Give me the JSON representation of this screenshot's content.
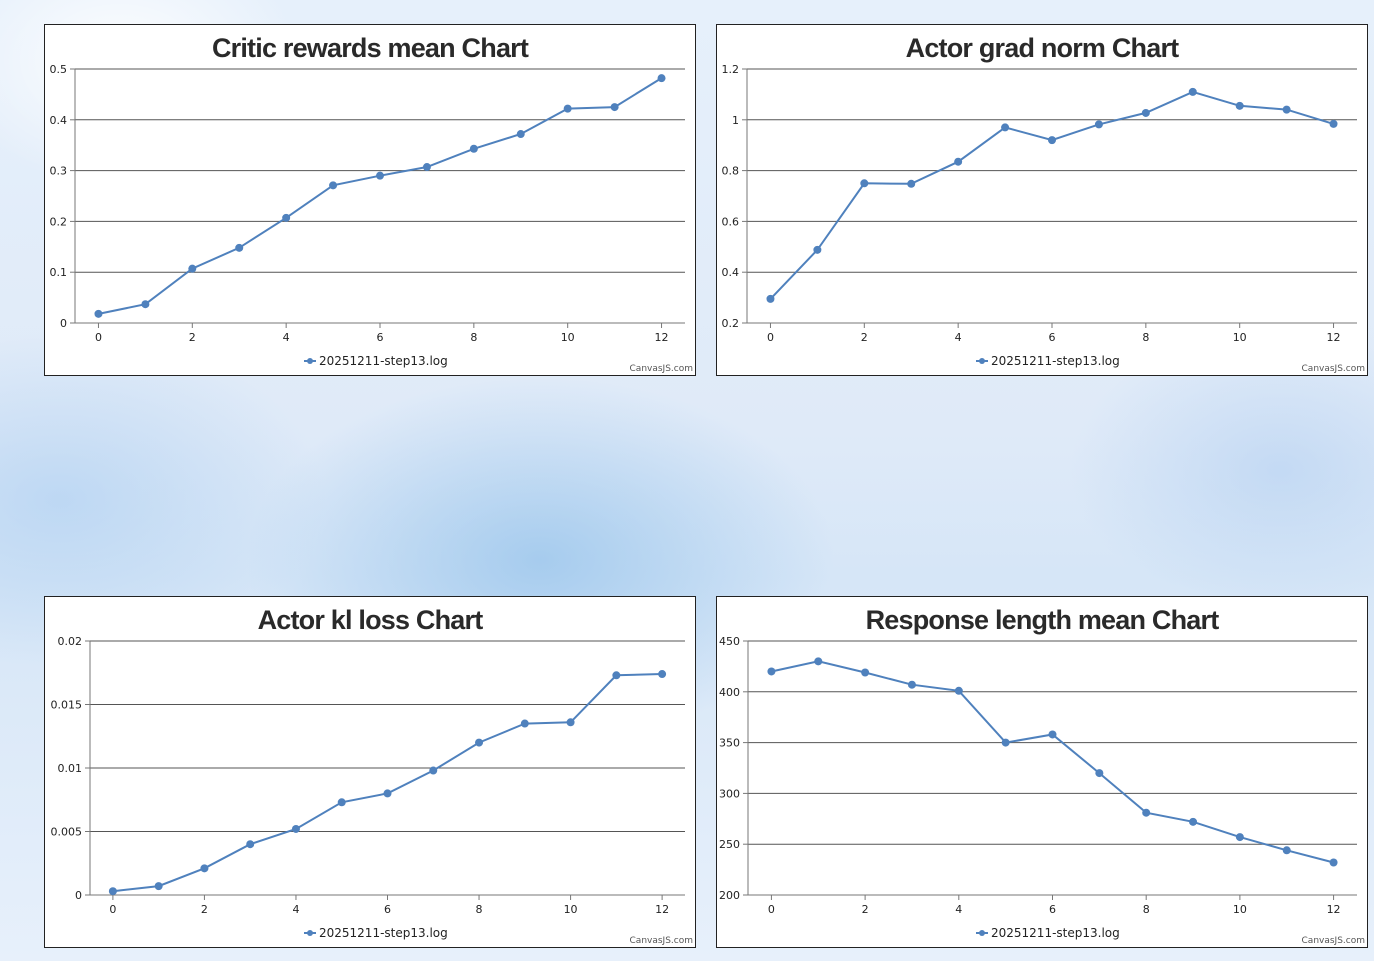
{
  "credit": "CanvasJS.com",
  "series_color": "#4f81bd",
  "chart_data": [
    {
      "type": "line",
      "title": "Critic rewards mean Chart",
      "legend": "20251211-step13.log",
      "x": [
        0,
        1,
        2,
        3,
        4,
        5,
        6,
        7,
        8,
        9,
        10,
        11,
        12
      ],
      "y": [
        0.018,
        0.037,
        0.107,
        0.148,
        0.207,
        0.271,
        0.29,
        0.307,
        0.343,
        0.372,
        0.422,
        0.425,
        0.482
      ],
      "ylim": [
        0,
        0.5
      ],
      "yticks": [
        0,
        0.1,
        0.2,
        0.3,
        0.4,
        0.5
      ],
      "ytick_labels": [
        "0",
        "0.1",
        "0.2",
        "0.3",
        "0.4",
        "0.5"
      ],
      "xlim": [
        -0.5,
        12.5
      ],
      "xticks": [
        0,
        2,
        4,
        6,
        8,
        10,
        12
      ],
      "xtick_labels": [
        "0",
        "2",
        "4",
        "6",
        "8",
        "10",
        "12"
      ],
      "grid": true,
      "legend_position": "bottom-center"
    },
    {
      "type": "line",
      "title": "Actor grad norm Chart",
      "legend": "20251211-step13.log",
      "x": [
        0,
        1,
        2,
        3,
        4,
        5,
        6,
        7,
        8,
        9,
        10,
        11,
        12
      ],
      "y": [
        0.295,
        0.488,
        0.75,
        0.748,
        0.835,
        0.97,
        0.92,
        0.982,
        1.027,
        1.11,
        1.055,
        1.04,
        0.984
      ],
      "ylim": [
        0.2,
        1.2
      ],
      "yticks": [
        0.2,
        0.4,
        0.6,
        0.8,
        1,
        1.2
      ],
      "ytick_labels": [
        "0.2",
        "0.4",
        "0.6",
        "0.8",
        "1",
        "1.2"
      ],
      "xlim": [
        -0.5,
        12.5
      ],
      "xticks": [
        0,
        2,
        4,
        6,
        8,
        10,
        12
      ],
      "xtick_labels": [
        "0",
        "2",
        "4",
        "6",
        "8",
        "10",
        "12"
      ],
      "grid": true,
      "legend_position": "bottom-center"
    },
    {
      "type": "line",
      "title": "Actor kl loss Chart",
      "legend": "20251211-step13.log",
      "x": [
        0,
        1,
        2,
        3,
        4,
        5,
        6,
        7,
        8,
        9,
        10,
        11,
        12
      ],
      "y": [
        0.0003,
        0.0007,
        0.0021,
        0.004,
        0.0052,
        0.0073,
        0.008,
        0.0098,
        0.012,
        0.0135,
        0.0136,
        0.0173,
        0.0174
      ],
      "ylim": [
        0,
        0.02
      ],
      "yticks": [
        0,
        0.005,
        0.01,
        0.015,
        0.02
      ],
      "ytick_labels": [
        "0",
        "0.005",
        "0.01",
        "0.015",
        "0.02"
      ],
      "xlim": [
        -0.5,
        12.5
      ],
      "xticks": [
        0,
        2,
        4,
        6,
        8,
        10,
        12
      ],
      "xtick_labels": [
        "0",
        "2",
        "4",
        "6",
        "8",
        "10",
        "12"
      ],
      "grid": true,
      "legend_position": "bottom-center"
    },
    {
      "type": "line",
      "title": "Response length mean Chart",
      "legend": "20251211-step13.log",
      "x": [
        0,
        1,
        2,
        3,
        4,
        5,
        6,
        7,
        8,
        9,
        10,
        11,
        12
      ],
      "y": [
        420,
        430,
        419,
        407,
        401,
        350,
        358,
        320,
        281,
        272,
        257,
        244,
        232
      ],
      "ylim": [
        200,
        450
      ],
      "yticks": [
        200,
        250,
        300,
        350,
        400,
        450
      ],
      "ytick_labels": [
        "200",
        "250",
        "300",
        "350",
        "400",
        "450"
      ],
      "xlim": [
        -0.5,
        12.5
      ],
      "xticks": [
        0,
        2,
        4,
        6,
        8,
        10,
        12
      ],
      "xtick_labels": [
        "0",
        "2",
        "4",
        "6",
        "8",
        "10",
        "12"
      ],
      "grid": true,
      "legend_position": "bottom-center"
    }
  ]
}
